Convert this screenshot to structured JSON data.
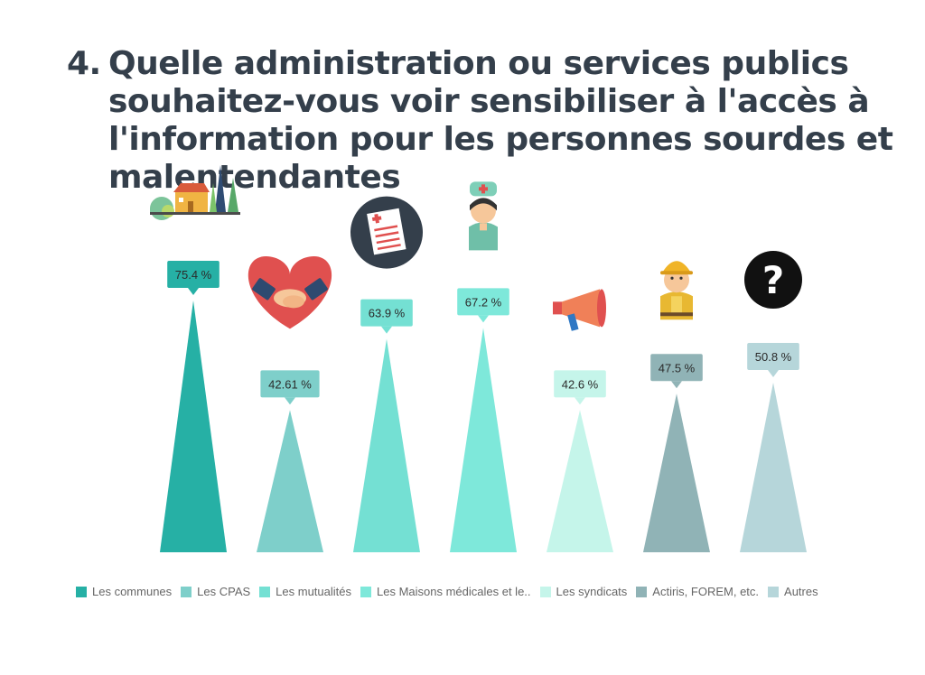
{
  "title": {
    "number": "4.",
    "text": "Quelle administration ou services publics souhaitez-vous voir sensibiliser à l'accès à l'information pour les personnes sourdes et malentendantes"
  },
  "chart_data": {
    "type": "bar",
    "categories": [
      "Les communes",
      "Les CPAS",
      "Les mutualités",
      "Les Maisons médicales et le..",
      "Les syndicats",
      "Actiris, FOREM, etc.",
      "Autres"
    ],
    "values": [
      75.4,
      42.61,
      63.9,
      67.2,
      42.6,
      47.5,
      50.8
    ],
    "data_labels": [
      "75.4 %",
      "42.61 %",
      "63.9 %",
      "67.2 %",
      "42.6 %",
      "47.5 %",
      "50.8 %"
    ],
    "colors": [
      "#26b0a5",
      "#7ecfca",
      "#74e0d3",
      "#7ee8da",
      "#c5f5ea",
      "#90b3b6",
      "#b6d6da"
    ],
    "icons": [
      "village-icon",
      "heart-handshake-icon",
      "medical-report-icon",
      "nurse-icon",
      "megaphone-icon",
      "construction-worker-icon",
      "question-mark-icon"
    ],
    "legend_position": "bottom",
    "grid": false,
    "ylim": [
      0,
      100
    ]
  },
  "legend": {
    "items": [
      "Les communes",
      "Les CPAS",
      "Les mutualités",
      "Les Maisons médicales et le..",
      "Les syndicats",
      "Actiris, FOREM, etc.",
      "Autres"
    ]
  }
}
